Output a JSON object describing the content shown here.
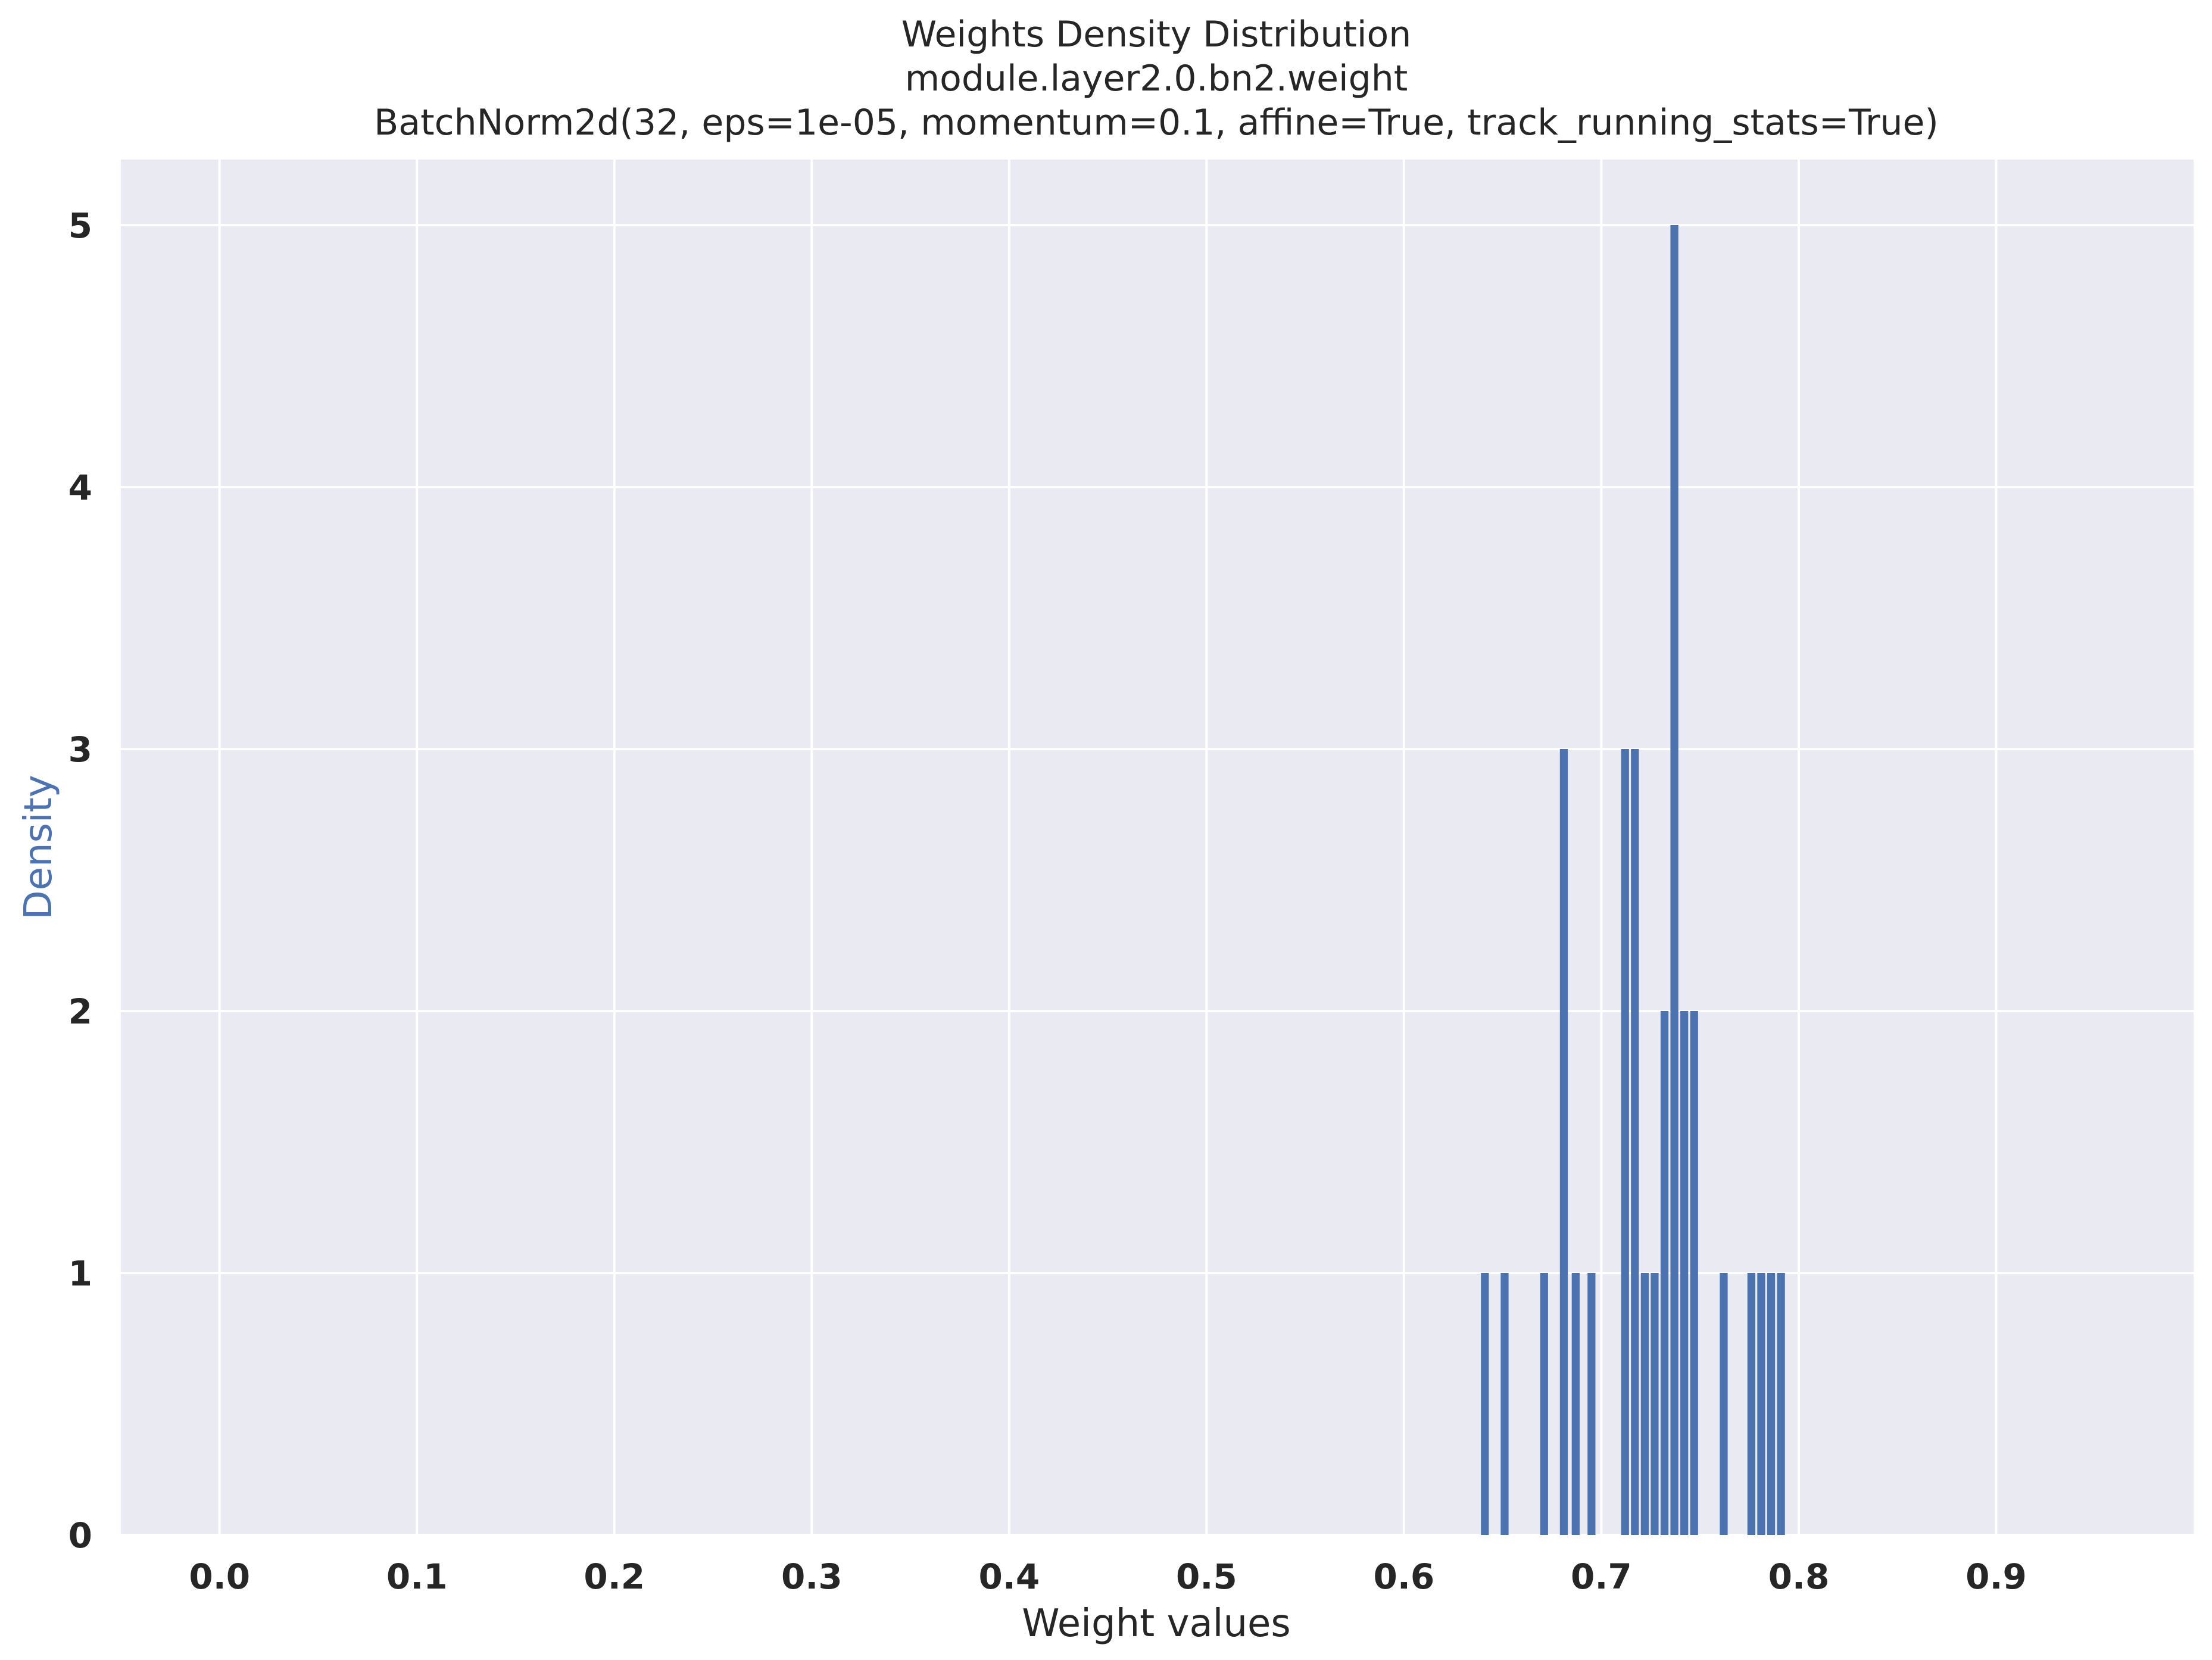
{
  "chart_data": {
    "type": "bar",
    "title_lines": [
      "Weights Density Distribution",
      "module.layer2.0.bn2.weight",
      "BatchNorm2d(32, eps=1e-05, momentum=0.1, affine=True, track_running_stats=True)"
    ],
    "xlabel": "Weight values",
    "ylabel": "Density",
    "xlim": [
      -0.05,
      1.0
    ],
    "ylim": [
      0,
      5.25
    ],
    "xticks": [
      0.0,
      0.1,
      0.2,
      0.3,
      0.4,
      0.5,
      0.6,
      0.7,
      0.8,
      0.9
    ],
    "xtick_labels": [
      "0.0",
      "0.1",
      "0.2",
      "0.3",
      "0.4",
      "0.5",
      "0.6",
      "0.7",
      "0.8",
      "0.9"
    ],
    "yticks": [
      0,
      1,
      2,
      3,
      4,
      5
    ],
    "ytick_labels": [
      "0",
      "1",
      "2",
      "3",
      "4",
      "5"
    ],
    "grid": true,
    "background": "#eaeaf2",
    "bar_color": "#4c72b0",
    "bar_width": 0.004,
    "bars": [
      {
        "x": 0.641,
        "value": 1
      },
      {
        "x": 0.651,
        "value": 1
      },
      {
        "x": 0.671,
        "value": 1
      },
      {
        "x": 0.681,
        "value": 3
      },
      {
        "x": 0.687,
        "value": 1
      },
      {
        "x": 0.695,
        "value": 1
      },
      {
        "x": 0.712,
        "value": 3
      },
      {
        "x": 0.717,
        "value": 3
      },
      {
        "x": 0.722,
        "value": 1
      },
      {
        "x": 0.727,
        "value": 1
      },
      {
        "x": 0.732,
        "value": 2
      },
      {
        "x": 0.737,
        "value": 5
      },
      {
        "x": 0.742,
        "value": 2
      },
      {
        "x": 0.747,
        "value": 2
      },
      {
        "x": 0.762,
        "value": 1
      },
      {
        "x": 0.776,
        "value": 1
      },
      {
        "x": 0.781,
        "value": 1
      },
      {
        "x": 0.786,
        "value": 1
      },
      {
        "x": 0.791,
        "value": 1
      }
    ]
  }
}
